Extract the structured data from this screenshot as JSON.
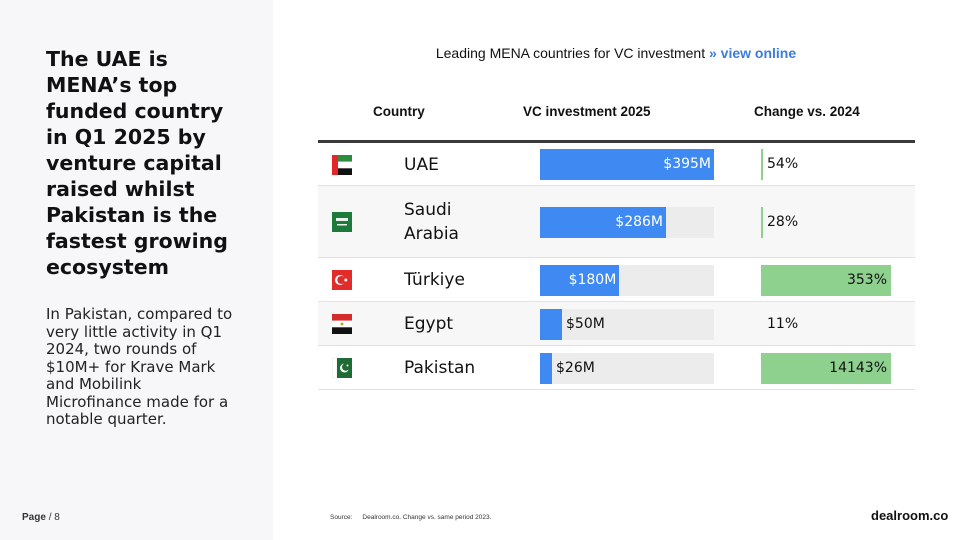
{
  "headline": "The UAE is MENA’s top funded country in Q1 2025 by venture capital raised whilst Pakistan is the fastest growing ecosystem",
  "body": "In Pakistan, compared to very little activity in Q1 2024, two rounds of $10M+ for Krave Mark and Mobilink Microfinance made for a notable quarter.",
  "footer": {
    "page_label": "Page",
    "page_number": "/ 8",
    "source_label": "Source:",
    "source_text": "Dealroom.co. Change vs. same period 2023.",
    "brand": "dealroom.co"
  },
  "chart_title": {
    "text": "Leading MENA countries for VC investment",
    "link_text": "» view online"
  },
  "colors": {
    "bar": "#3f8af2",
    "track": "#ececec",
    "change_bar": "#8ed18f",
    "link": "#3b7ddd"
  },
  "chart_data": {
    "type": "table",
    "columns": [
      "Country",
      "VC investment 2025",
      "Change vs. 2024"
    ],
    "rows": [
      {
        "country": "UAE",
        "flag": "uae-flag-icon",
        "value": 395,
        "value_label": "$395M",
        "change": 54,
        "change_label": "54%"
      },
      {
        "country": "Saudi Arabia",
        "flag": "saudi-arabia-flag-icon",
        "value": 286,
        "value_label": "$286M",
        "change": 28,
        "change_label": "28%"
      },
      {
        "country": "Türkiye",
        "flag": "turkiye-flag-icon",
        "value": 180,
        "value_label": "$180M",
        "change": 353,
        "change_label": "353%"
      },
      {
        "country": "Egypt",
        "flag": "egypt-flag-icon",
        "value": 50,
        "value_label": "$50M",
        "change": 11,
        "change_label": "11%"
      },
      {
        "country": "Pakistan",
        "flag": "pakistan-flag-icon",
        "value": 26,
        "value_label": "$26M",
        "change": 14143,
        "change_label": "14143%"
      }
    ]
  }
}
